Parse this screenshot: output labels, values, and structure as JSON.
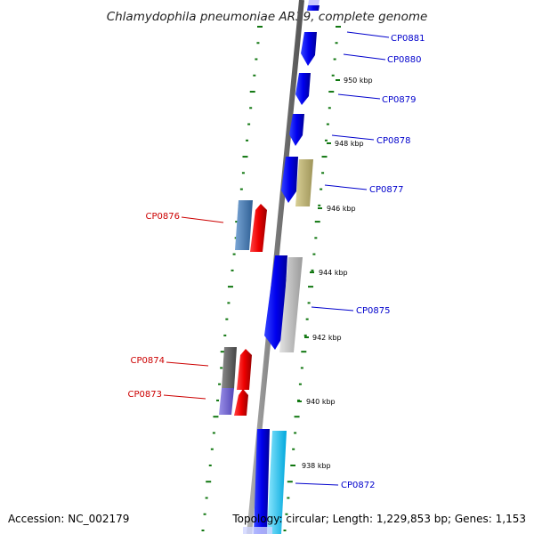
{
  "title": "Chlamydophila pneumoniae AR39, complete genome",
  "footer": {
    "accession": "Accession: NC_002179",
    "summary": "Topology: circular; Length: 1,229,853 bp; Genes: 1,153"
  },
  "colors": {
    "label_forward": "#0000cc",
    "label_reverse": "#cc0000",
    "tick": "#117711",
    "backbone": "#808080"
  },
  "scale_labels": [
    "950 kbp",
    "948 kbp",
    "946 kbp",
    "944 kbp",
    "942 kbp",
    "940 kbp",
    "938 kbp"
  ],
  "forward_labels": [
    "CP0881",
    "CP0880",
    "CP0879",
    "CP0878",
    "CP0877",
    "CP0875",
    "CP0872"
  ],
  "reverse_labels": [
    "CP0876",
    "CP0874",
    "CP0873"
  ],
  "legend": []
}
